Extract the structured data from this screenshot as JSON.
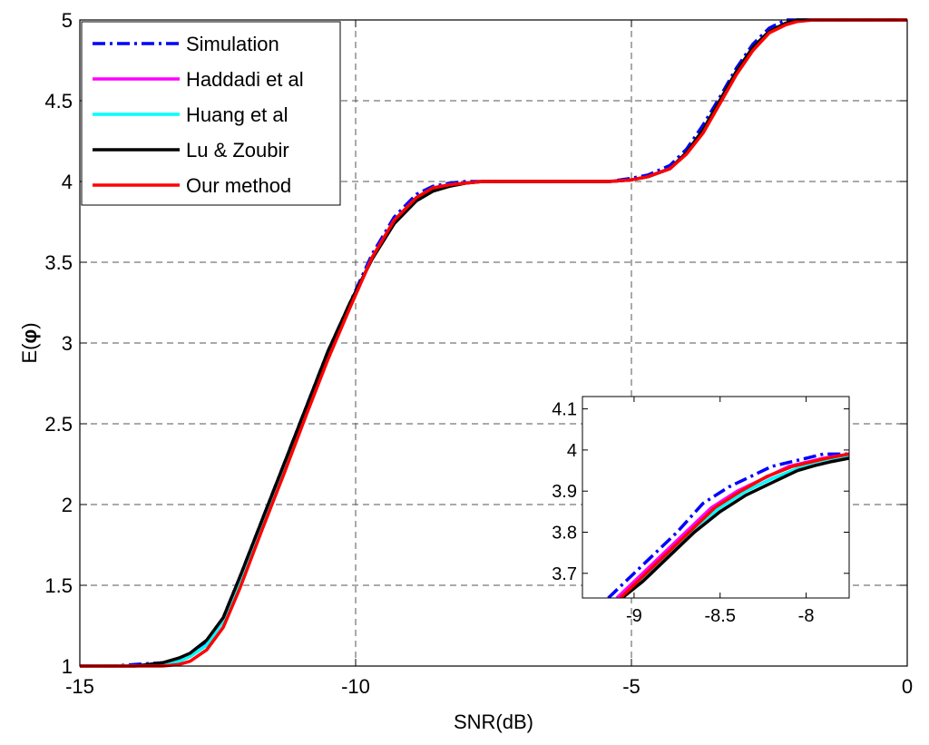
{
  "chart_data": [
    {
      "id": "main",
      "type": "line",
      "xlabel": "SNR(dB)",
      "ylabel_main": "E(",
      "ylabel_symbol": "φ",
      "ylabel_close": ")",
      "xlim": [
        -15,
        0
      ],
      "ylim": [
        1,
        5
      ],
      "xticks": [
        -15,
        -10,
        -5,
        0
      ],
      "xtick_labels": [
        "-15",
        "-10",
        "-5",
        "0"
      ],
      "yticks": [
        1,
        1.5,
        2,
        2.5,
        3,
        3.5,
        4,
        4.5,
        5
      ],
      "ytick_labels": [
        "1",
        "1.5",
        "2",
        "2.5",
        "3",
        "3.5",
        "4",
        "4.5",
        "5"
      ],
      "grid": true,
      "legend_position": "top-left",
      "series": [
        {
          "name": "Simulation",
          "color": "#0000ff",
          "style": "dashdot",
          "x": [
            -15,
            -14.4,
            -14,
            -13.5,
            -13.2,
            -13,
            -12.7,
            -12.4,
            -12.1,
            -11.7,
            -11.3,
            -10.9,
            -10.5,
            -10.1,
            -9.7,
            -9.3,
            -8.9,
            -8.6,
            -8.3,
            -8,
            -7.7,
            -7,
            -6,
            -5.4,
            -5,
            -4.7,
            -4.3,
            -4,
            -3.7,
            -3.4,
            -3.1,
            -2.8,
            -2.5,
            -2.2,
            -2,
            -1.7,
            0
          ],
          "y": [
            1,
            1,
            1.01,
            1.02,
            1.04,
            1.07,
            1.15,
            1.3,
            1.55,
            1.9,
            2.25,
            2.6,
            2.95,
            3.25,
            3.55,
            3.78,
            3.92,
            3.97,
            3.99,
            4,
            4,
            4,
            4,
            4,
            4.02,
            4.04,
            4.1,
            4.2,
            4.35,
            4.52,
            4.7,
            4.85,
            4.95,
            5,
            5,
            5,
            5
          ]
        },
        {
          "name": "Haddadi et al",
          "color": "#ff00ff",
          "style": "solid",
          "x": [
            -15,
            -14.4,
            -14,
            -13.5,
            -13.2,
            -13,
            -12.7,
            -12.4,
            -12.1,
            -11.7,
            -11.3,
            -10.9,
            -10.5,
            -10.1,
            -9.7,
            -9.3,
            -8.9,
            -8.6,
            -8.3,
            -8,
            -7.7,
            -7,
            -6,
            -5.4,
            -5,
            -4.7,
            -4.3,
            -4,
            -3.7,
            -3.4,
            -3.1,
            -2.8,
            -2.5,
            -2.2,
            -2,
            -1.7,
            0
          ],
          "y": [
            1,
            1,
            1,
            1.01,
            1.03,
            1.06,
            1.13,
            1.28,
            1.52,
            1.87,
            2.22,
            2.58,
            2.93,
            3.23,
            3.53,
            3.76,
            3.9,
            3.96,
            3.98,
            3.99,
            4,
            4,
            4,
            4,
            4.01,
            4.03,
            4.08,
            4.18,
            4.32,
            4.5,
            4.68,
            4.83,
            4.93,
            4.98,
            5,
            5,
            5
          ]
        },
        {
          "name": "Huang et al",
          "color": "#00ffff",
          "style": "solid",
          "x": [
            -15,
            -14.4,
            -14,
            -13.5,
            -13.2,
            -13,
            -12.7,
            -12.4,
            -12.1,
            -11.7,
            -11.3,
            -10.9,
            -10.5,
            -10.1,
            -9.7,
            -9.3,
            -8.9,
            -8.6,
            -8.3,
            -8,
            -7.7,
            -7,
            -6,
            -5.4,
            -5,
            -4.7,
            -4.3,
            -4,
            -3.7,
            -3.4,
            -3.1,
            -2.8,
            -2.5,
            -2.2,
            -2,
            -1.7,
            0
          ],
          "y": [
            1,
            1,
            1,
            1.01,
            1.03,
            1.06,
            1.13,
            1.28,
            1.52,
            1.87,
            2.22,
            2.58,
            2.93,
            3.23,
            3.53,
            3.76,
            3.9,
            3.96,
            3.98,
            3.99,
            4,
            4,
            4,
            4,
            4.01,
            4.03,
            4.08,
            4.18,
            4.32,
            4.5,
            4.68,
            4.83,
            4.93,
            4.98,
            5,
            5,
            5
          ]
        },
        {
          "name": "Lu & Zoubir",
          "color": "#000000",
          "style": "solid",
          "x": [
            -15,
            -14.4,
            -14,
            -13.5,
            -13.2,
            -13,
            -12.7,
            -12.4,
            -12.1,
            -11.7,
            -11.3,
            -10.9,
            -10.5,
            -10.1,
            -9.7,
            -9.3,
            -8.9,
            -8.6,
            -8.3,
            -8,
            -7.7,
            -7,
            -6,
            -5.4,
            -5,
            -4.7,
            -4.3,
            -4,
            -3.7,
            -3.4,
            -3.1,
            -2.8,
            -2.5,
            -2.2,
            -2,
            -1.7,
            0
          ],
          "y": [
            1,
            1,
            1,
            1.02,
            1.05,
            1.08,
            1.16,
            1.3,
            1.55,
            1.9,
            2.25,
            2.6,
            2.95,
            3.25,
            3.52,
            3.74,
            3.88,
            3.94,
            3.97,
            3.99,
            4,
            4,
            4,
            4,
            4.01,
            4.03,
            4.08,
            4.18,
            4.32,
            4.5,
            4.68,
            4.83,
            4.93,
            4.98,
            5,
            5,
            5
          ]
        },
        {
          "name": "Our method",
          "color": "#ff0000",
          "style": "solid",
          "x": [
            -15,
            -14.4,
            -14,
            -13.5,
            -13.2,
            -13,
            -12.7,
            -12.4,
            -12.1,
            -11.7,
            -11.3,
            -10.9,
            -10.5,
            -10.1,
            -9.7,
            -9.3,
            -8.9,
            -8.6,
            -8.3,
            -8,
            -7.7,
            -7,
            -6,
            -5.4,
            -5,
            -4.7,
            -4.3,
            -4,
            -3.7,
            -3.4,
            -3.1,
            -2.8,
            -2.5,
            -2.2,
            -2,
            -1.7,
            0
          ],
          "y": [
            1,
            1,
            1,
            1,
            1.01,
            1.03,
            1.1,
            1.24,
            1.48,
            1.84,
            2.19,
            2.55,
            2.9,
            3.22,
            3.53,
            3.76,
            3.9,
            3.96,
            3.98,
            3.99,
            4,
            4,
            4,
            4,
            4.01,
            4.03,
            4.08,
            4.17,
            4.3,
            4.48,
            4.66,
            4.81,
            4.92,
            4.97,
            4.99,
            5,
            5
          ]
        }
      ]
    },
    {
      "id": "inset",
      "type": "line",
      "xlim": [
        -9.3,
        -7.75
      ],
      "ylim": [
        3.64,
        4.13
      ],
      "xticks": [
        -9,
        -8.5,
        -8
      ],
      "xtick_labels": [
        "-9",
        "-8.5",
        "-8"
      ],
      "yticks": [
        3.7,
        3.8,
        3.9,
        4,
        4.1
      ],
      "ytick_labels": [
        "3.7",
        "3.8",
        "3.9",
        "4",
        "4.1"
      ],
      "grid": false,
      "series": [
        {
          "name": "Simulation",
          "color": "#0000ff",
          "style": "dashdot",
          "x": [
            -9.15,
            -9.05,
            -8.9,
            -8.75,
            -8.6,
            -8.45,
            -8.3,
            -8.2,
            -8.1,
            -8,
            -7.9,
            -7.75
          ],
          "y": [
            3.64,
            3.68,
            3.74,
            3.8,
            3.87,
            3.91,
            3.94,
            3.96,
            3.97,
            3.98,
            3.99,
            3.99
          ]
        },
        {
          "name": "Haddadi et al",
          "color": "#ff00ff",
          "style": "solid",
          "x": [
            -9.1,
            -9,
            -8.85,
            -8.7,
            -8.55,
            -8.4,
            -8.25,
            -8.1,
            -8,
            -7.9,
            -7.75
          ],
          "y": [
            3.64,
            3.68,
            3.74,
            3.8,
            3.86,
            3.9,
            3.93,
            3.96,
            3.97,
            3.98,
            3.99
          ]
        },
        {
          "name": "Huang et al",
          "color": "#00ffff",
          "style": "solid",
          "x": [
            -9.08,
            -8.95,
            -8.8,
            -8.65,
            -8.5,
            -8.35,
            -8.2,
            -8.05,
            -7.95,
            -7.85,
            -7.75
          ],
          "y": [
            3.64,
            3.69,
            3.75,
            3.81,
            3.86,
            3.9,
            3.93,
            3.955,
            3.965,
            3.975,
            3.985
          ]
        },
        {
          "name": "Lu & Zoubir",
          "color": "#000000",
          "style": "solid",
          "x": [
            -9.07,
            -8.95,
            -8.8,
            -8.65,
            -8.5,
            -8.35,
            -8.2,
            -8.05,
            -7.95,
            -7.85,
            -7.75
          ],
          "y": [
            3.64,
            3.68,
            3.74,
            3.8,
            3.85,
            3.89,
            3.92,
            3.95,
            3.962,
            3.972,
            3.98
          ]
        },
        {
          "name": "Our method",
          "color": "#ff0000",
          "style": "solid",
          "x": [
            -9.08,
            -8.98,
            -8.83,
            -8.68,
            -8.53,
            -8.38,
            -8.23,
            -8.08,
            -7.98,
            -7.88,
            -7.75
          ],
          "y": [
            3.64,
            3.68,
            3.74,
            3.8,
            3.86,
            3.9,
            3.935,
            3.96,
            3.97,
            3.98,
            3.99
          ]
        }
      ]
    }
  ]
}
